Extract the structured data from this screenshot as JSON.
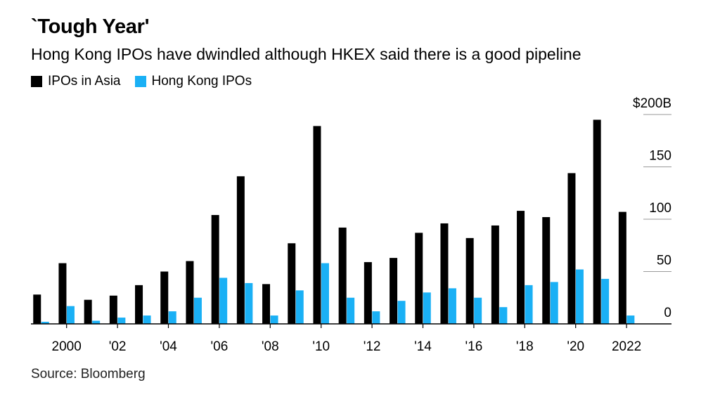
{
  "chart_data": {
    "type": "bar",
    "title": "`Tough Year'",
    "subtitle": "Hong Kong IPOs have dwindled although HKEX said there is a good pipeline",
    "source": "Source: Bloomberg",
    "categories": [
      "1999",
      "2000",
      "2001",
      "2002",
      "2003",
      "2004",
      "2005",
      "2006",
      "2007",
      "2008",
      "2009",
      "2010",
      "2011",
      "2012",
      "2013",
      "2014",
      "2015",
      "2016",
      "2017",
      "2018",
      "2019",
      "2020",
      "2021",
      "2022"
    ],
    "series": [
      {
        "name": "IPOs in Asia",
        "color": "#000000",
        "values": [
          28,
          58,
          23,
          27,
          37,
          50,
          60,
          104,
          141,
          38,
          77,
          189,
          92,
          59,
          63,
          87,
          96,
          82,
          94,
          108,
          102,
          144,
          195,
          107
        ]
      },
      {
        "name": "Hong Kong IPOs",
        "color": "#1ab0f5",
        "values": [
          2,
          17,
          3,
          6,
          8,
          12,
          25,
          44,
          39,
          8,
          32,
          58,
          25,
          12,
          22,
          30,
          34,
          25,
          16,
          37,
          40,
          52,
          43,
          8
        ]
      }
    ],
    "ylim": [
      0,
      200
    ],
    "yticks": [
      0,
      50,
      100,
      150,
      200
    ],
    "ytick_labels": [
      "0",
      "50",
      "100",
      "150",
      "$200B"
    ],
    "xtick_labels": [
      {
        "category": "2000",
        "label": "2000"
      },
      {
        "category": "2002",
        "label": "'02"
      },
      {
        "category": "2004",
        "label": "'04"
      },
      {
        "category": "2006",
        "label": "'06"
      },
      {
        "category": "2008",
        "label": "'08"
      },
      {
        "category": "2010",
        "label": "'10"
      },
      {
        "category": "2012",
        "label": "'12"
      },
      {
        "category": "2014",
        "label": "'14"
      },
      {
        "category": "2016",
        "label": "'16"
      },
      {
        "category": "2018",
        "label": "'18"
      },
      {
        "category": "2020",
        "label": "'20"
      },
      {
        "category": "2022",
        "label": "2022"
      }
    ],
    "grid": true,
    "legend_position": "top-left"
  }
}
